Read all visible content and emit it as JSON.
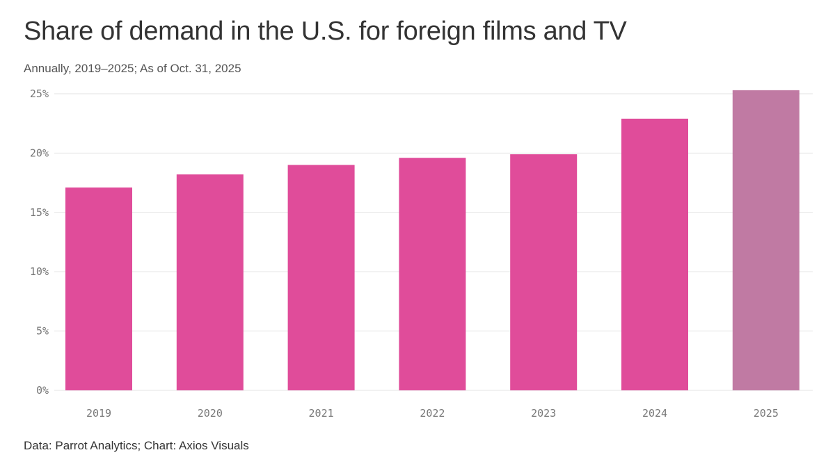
{
  "chart_data": {
    "type": "bar",
    "title": "Share of demand in the U.S. for foreign films and TV",
    "subtitle": "Annually, 2019–2025; As of Oct. 31, 2025",
    "source": "Data: Parrot Analytics; Chart: Axios Visuals",
    "categories": [
      "2019",
      "2020",
      "2021",
      "2022",
      "2023",
      "2024",
      "2025"
    ],
    "values": [
      17.1,
      18.2,
      19.0,
      19.6,
      19.9,
      22.9,
      25.3
    ],
    "xlabel": "",
    "ylabel": "",
    "ylim": [
      0,
      25
    ],
    "yticks": [
      0,
      5,
      10,
      15,
      20,
      25
    ],
    "ytick_labels": [
      "0%",
      "5%",
      "10%",
      "15%",
      "20%",
      "25%"
    ],
    "grid": true,
    "bar_colors": [
      "#e04c9a",
      "#e04c9a",
      "#e04c9a",
      "#e04c9a",
      "#e04c9a",
      "#e04c9a",
      "#c07aa3"
    ]
  }
}
